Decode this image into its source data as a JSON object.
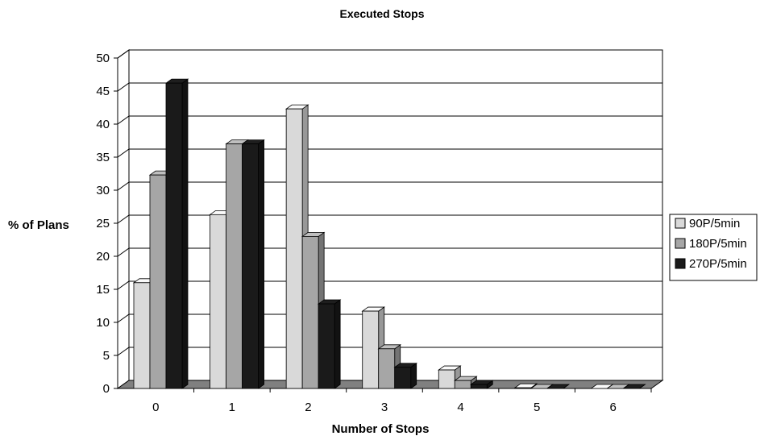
{
  "chart_data": {
    "type": "bar",
    "title": "Executed Stops",
    "xlabel": "Number of Stops",
    "ylabel": "% of Plans",
    "categories": [
      "0",
      "1",
      "2",
      "3",
      "4",
      "5",
      "6"
    ],
    "ylim": [
      0,
      50
    ],
    "yticks": [
      "0",
      "5",
      "10",
      "15",
      "20",
      "25",
      "30",
      "35",
      "40",
      "45",
      "50"
    ],
    "grid": true,
    "legend_position": "right",
    "series": [
      {
        "name": "90P/5min",
        "color": "#d9d9d9",
        "values": [
          16,
          26.3,
          42.3,
          11.7,
          2.8,
          0.1,
          0
        ]
      },
      {
        "name": "180P/5min",
        "color": "#a6a6a6",
        "values": [
          32.3,
          37,
          23,
          6,
          1.2,
          0,
          0
        ]
      },
      {
        "name": "270P/5min",
        "color": "#1a1a1a",
        "values": [
          46.2,
          37,
          12.8,
          3.2,
          0.6,
          0,
          0
        ]
      }
    ]
  }
}
